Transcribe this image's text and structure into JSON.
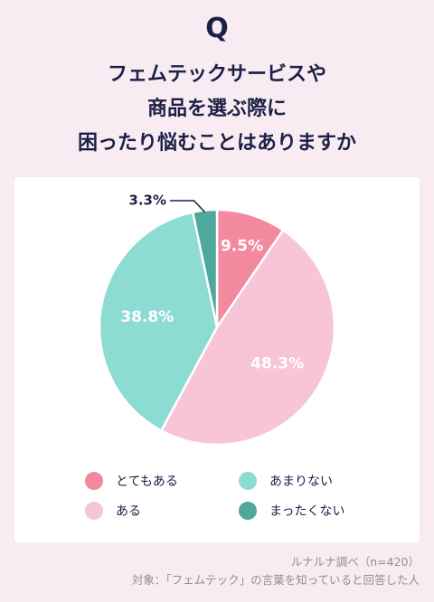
{
  "question_mark": "Q",
  "title_lines": [
    "フェムテックサービスや",
    "商品を選ぶ際に",
    "困ったり悩むことはありますか"
  ],
  "chart_data": {
    "type": "pie",
    "start": "top",
    "direction": "clockwise",
    "slices": [
      {
        "label": "とてもある",
        "value": 9.5,
        "display": "9.5%",
        "color": "#f2899f",
        "label_position": "inside"
      },
      {
        "label": "ある",
        "value": 48.3,
        "display": "48.3%",
        "color": "#f8c4d8",
        "label_position": "inside"
      },
      {
        "label": "あまりない",
        "value": 38.8,
        "display": "38.8%",
        "color": "#8ddcd4",
        "label_position": "inside"
      },
      {
        "label": "まったくない",
        "value": 3.3,
        "display": "3.3%",
        "color": "#4ea89c",
        "label_position": "outside"
      }
    ],
    "legend": [
      {
        "label": "とてもある",
        "color": "#f2899f"
      },
      {
        "label": "あまりない",
        "color": "#8ddcd4"
      },
      {
        "label": "ある",
        "color": "#f8c4d8"
      },
      {
        "label": "まったくない",
        "color": "#4ea89c"
      }
    ],
    "legend_placement": "bottom, two columns"
  },
  "source": {
    "line1": "ルナルナ調べ（n=420）",
    "line2": "対象：「フェムテック」の言葉を知っていると回答した人"
  }
}
